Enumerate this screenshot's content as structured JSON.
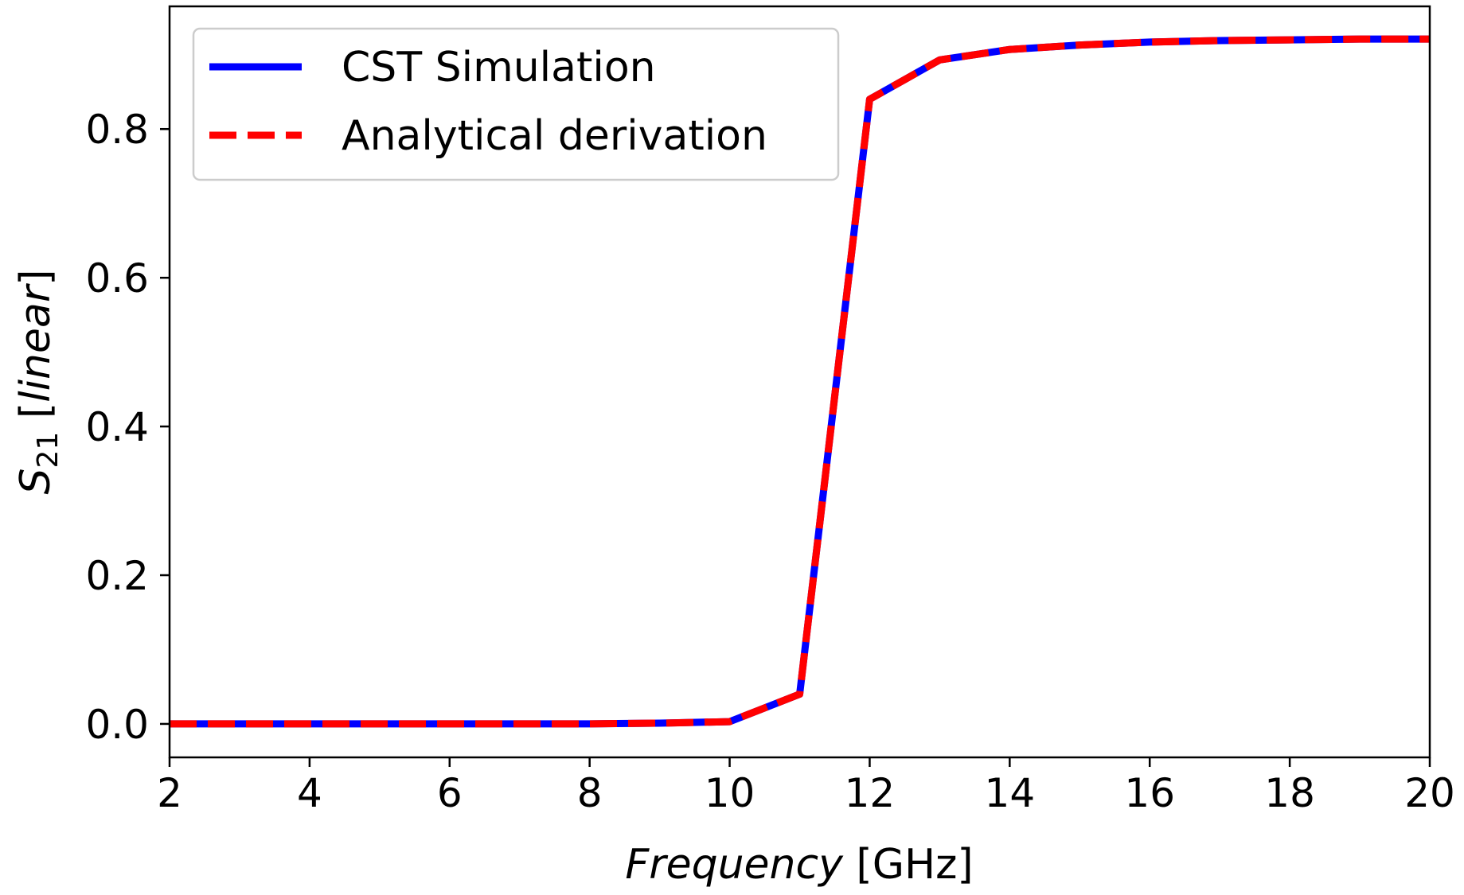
{
  "chart_data": {
    "type": "line",
    "xlabel": "Frequency [GHz]",
    "xlabel_parts": {
      "main": "Frequency",
      "unit": " [GHz]"
    },
    "ylabel": "S21 [linear]",
    "ylabel_parts": {
      "symbol": "S",
      "subscript": "21",
      "bracket_open": " [",
      "unit": "linear",
      "bracket_close": "]"
    },
    "xlim": [
      2,
      20
    ],
    "ylim": [
      -0.045,
      0.965
    ],
    "xticks": [
      2,
      4,
      6,
      8,
      10,
      12,
      14,
      16,
      18,
      20
    ],
    "xtick_labels": [
      "2",
      "4",
      "6",
      "8",
      "10",
      "12",
      "14",
      "16",
      "18",
      "20"
    ],
    "yticks": [
      0.0,
      0.2,
      0.4,
      0.6,
      0.8
    ],
    "ytick_labels": [
      "0.0",
      "0.2",
      "0.4",
      "0.6",
      "0.8"
    ],
    "grid": false,
    "legend_position": "top-left",
    "series": [
      {
        "name": "CST Simulation",
        "color": "#0000ff",
        "style": "solid",
        "x": [
          2,
          3,
          4,
          5,
          6,
          7,
          8,
          9,
          10,
          11,
          12,
          13,
          14,
          15,
          16,
          17,
          18,
          19,
          20
        ],
        "y": [
          0.0,
          0.0,
          0.0,
          0.0,
          0.0,
          0.0,
          0.0,
          0.001,
          0.003,
          0.04,
          0.84,
          0.893,
          0.907,
          0.913,
          0.917,
          0.919,
          0.92,
          0.921,
          0.921
        ]
      },
      {
        "name": "Analytical derivation",
        "color": "#ff0000",
        "style": "dashed",
        "x": [
          2,
          3,
          4,
          5,
          6,
          7,
          8,
          9,
          10,
          11,
          12,
          13,
          14,
          15,
          16,
          17,
          18,
          19,
          20
        ],
        "y": [
          0.0,
          0.0,
          0.0,
          0.0,
          0.0,
          0.0,
          0.0,
          0.001,
          0.003,
          0.04,
          0.84,
          0.893,
          0.907,
          0.913,
          0.917,
          0.919,
          0.92,
          0.921,
          0.921
        ]
      }
    ]
  }
}
